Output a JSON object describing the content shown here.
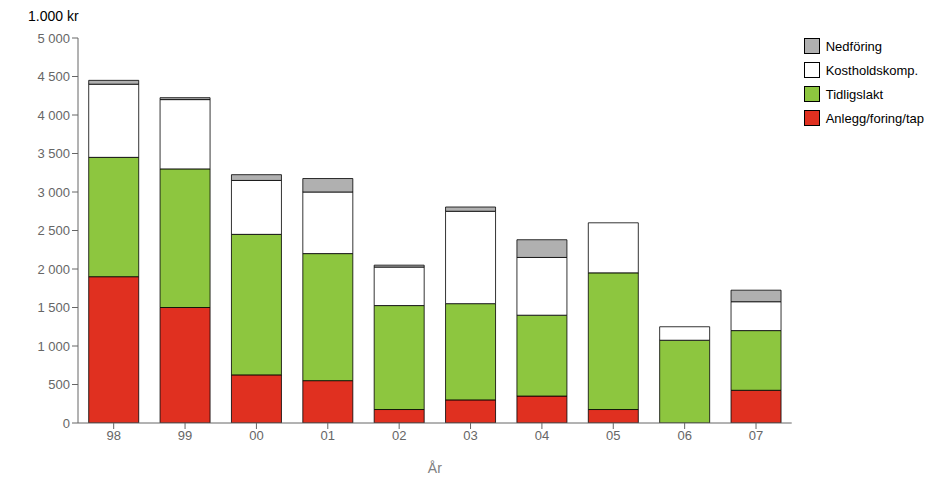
{
  "chart_data": {
    "type": "bar",
    "stacked": true,
    "ylabel": "1.000 kr",
    "xlabel": "År",
    "categories": [
      "98",
      "99",
      "00",
      "01",
      "02",
      "03",
      "04",
      "05",
      "06",
      "07"
    ],
    "series": [
      {
        "name": "Anlegg/foring/tap",
        "color": "#e03020",
        "values": [
          1900,
          1500,
          625,
          550,
          175,
          300,
          350,
          175,
          0,
          425
        ]
      },
      {
        "name": "Tidligslakt",
        "color": "#8dc63f",
        "values": [
          1550,
          1800,
          1825,
          1650,
          1350,
          1250,
          1050,
          1775,
          1075,
          775
        ]
      },
      {
        "name": "Kostholdskomp.",
        "color": "#ffffff",
        "values": [
          950,
          900,
          700,
          800,
          500,
          1200,
          750,
          650,
          175,
          375
        ]
      },
      {
        "name": "Nedföring",
        "color": "#b0b0b0",
        "values": [
          50,
          25,
          75,
          175,
          25,
          55,
          230,
          0,
          0,
          150
        ]
      }
    ],
    "ylim": [
      0,
      5000
    ],
    "yticks": [
      0,
      500,
      {
        "value": 1000,
        "label": "1 000"
      },
      {
        "value": 1500,
        "label": "1 500"
      },
      {
        "value": 2000,
        "label": "2 000"
      },
      {
        "value": 2500,
        "label": "2 500"
      },
      {
        "value": 3000,
        "label": "3 000"
      },
      {
        "value": 3500,
        "label": "3 500"
      },
      {
        "value": 4000,
        "label": "4 000"
      },
      {
        "value": 4500,
        "label": "4 500"
      },
      {
        "value": 5000,
        "label": "5 000"
      }
    ],
    "grid": false,
    "legend": "upper right"
  }
}
